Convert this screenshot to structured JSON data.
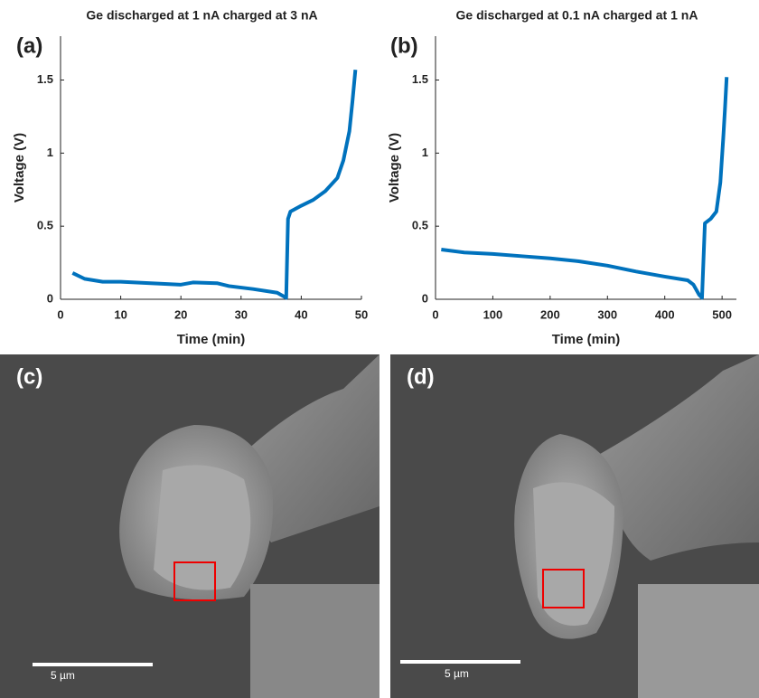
{
  "chart_data": [
    {
      "type": "line",
      "panel_label": "(a)",
      "title": "Ge discharged at 1 nA charged at 3 nA",
      "xlabel": "Time (min)",
      "ylabel": "Voltage (V)",
      "x": [
        2,
        4,
        7,
        10,
        15,
        20,
        22,
        26,
        28,
        32,
        36,
        37.5,
        37.8,
        38.2,
        40,
        42,
        44,
        46,
        47,
        48,
        48.5,
        49
      ],
      "values": [
        0.18,
        0.14,
        0.12,
        0.12,
        0.11,
        0.1,
        0.115,
        0.11,
        0.09,
        0.07,
        0.045,
        0.01,
        0.55,
        0.6,
        0.64,
        0.68,
        0.74,
        0.83,
        0.95,
        1.15,
        1.35,
        1.57
      ],
      "color": "#0072bd",
      "xlim": [
        0,
        50
      ],
      "xticks": [
        0,
        10,
        20,
        30,
        40,
        50
      ],
      "ylim": [
        0,
        1.8
      ],
      "yticks": [
        0,
        0.5,
        1,
        1.5
      ]
    },
    {
      "type": "line",
      "panel_label": "(b)",
      "title": "Ge discharged at 0.1 nA charged at 1 nA",
      "xlabel": "Time (min)",
      "ylabel": "Voltage (V)",
      "x": [
        10,
        50,
        100,
        150,
        200,
        250,
        300,
        350,
        400,
        440,
        450,
        460,
        465,
        470,
        480,
        490,
        497,
        502,
        505,
        508
      ],
      "values": [
        0.34,
        0.32,
        0.31,
        0.295,
        0.28,
        0.26,
        0.23,
        0.19,
        0.155,
        0.13,
        0.1,
        0.03,
        0.01,
        0.52,
        0.55,
        0.6,
        0.8,
        1.1,
        1.3,
        1.52
      ],
      "color": "#0072bd",
      "xlim": [
        0,
        525
      ],
      "xticks": [
        0,
        100,
        200,
        300,
        400,
        500
      ],
      "ylim": [
        0,
        1.8
      ],
      "yticks": [
        0,
        0.5,
        1,
        1.5
      ]
    }
  ],
  "images": [
    {
      "label": "(c)",
      "scale_bar": "5 µm"
    },
    {
      "label": "(d)",
      "scale_bar": "5 µm"
    }
  ]
}
